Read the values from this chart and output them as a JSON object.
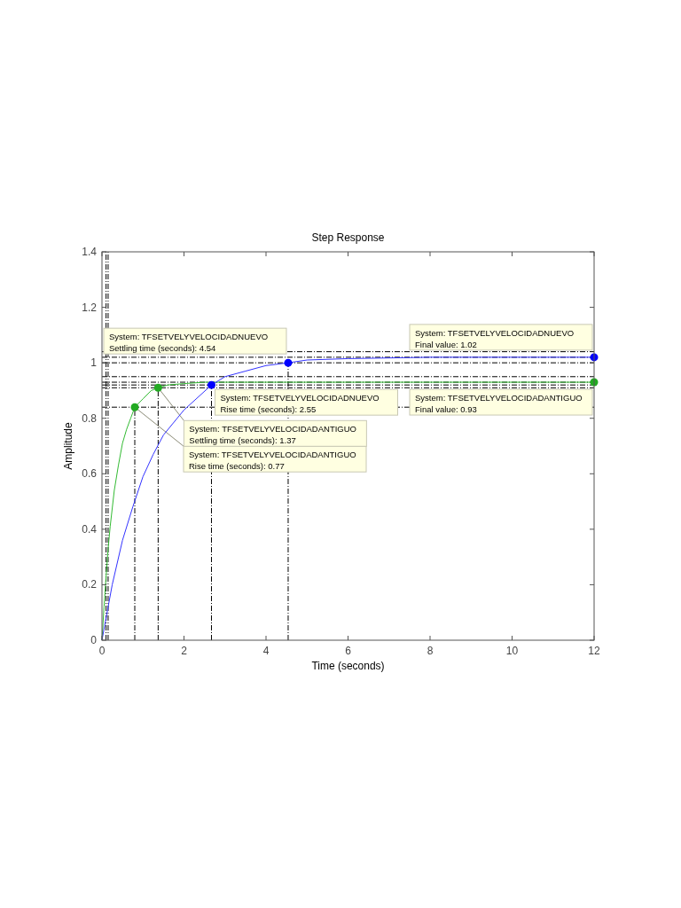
{
  "chart_data": {
    "type": "line",
    "title": "Step Response",
    "xlabel": "Time (seconds)",
    "ylabel": "Amplitude",
    "xlim": [
      0,
      12
    ],
    "xticks": [
      0,
      2,
      4,
      6,
      8,
      10,
      12
    ],
    "ylim": [
      0,
      1.4
    ],
    "yticks": [
      0,
      0.2,
      0.4,
      0.6,
      0.8,
      1,
      1.2,
      1.4
    ],
    "series": [
      {
        "type": "line",
        "color": "#33bb33",
        "x": [
          0,
          0.05,
          0.1,
          0.15,
          0.2,
          0.3,
          0.4,
          0.5,
          0.6,
          0.7,
          0.8,
          1.0,
          1.2,
          1.37,
          1.6,
          2,
          2.5,
          3,
          4,
          6,
          8,
          10,
          12
        ],
        "values": [
          0,
          0.12,
          0.23,
          0.33,
          0.41,
          0.54,
          0.63,
          0.71,
          0.76,
          0.8,
          0.84,
          0.87,
          0.9,
          0.91,
          0.92,
          0.925,
          0.93,
          0.93,
          0.93,
          0.93,
          0.93,
          0.93,
          0.93
        ]
      },
      {
        "type": "line",
        "color": "#3333ff",
        "x": [
          0,
          0.25,
          0.5,
          0.75,
          1,
          1.25,
          1.5,
          2,
          2.67,
          3,
          3.5,
          4,
          4.54,
          5,
          6,
          8,
          10,
          12
        ],
        "values": [
          0,
          0.2,
          0.36,
          0.48,
          0.59,
          0.67,
          0.74,
          0.83,
          0.92,
          0.95,
          0.97,
          0.99,
          1.0,
          1.01,
          1.015,
          1.02,
          1.02,
          1.02
        ]
      },
      {
        "type": "scatter",
        "marker": "circle",
        "color": "#22aa22",
        "x": [
          0.8,
          1.37,
          12
        ],
        "values": [
          0.84,
          0.91,
          0.93
        ]
      },
      {
        "type": "scatter",
        "marker": "circle",
        "color": "#0000ff",
        "x": [
          2.67,
          4.54,
          12
        ],
        "values": [
          0.92,
          1.0,
          1.02
        ]
      }
    ],
    "ref_lines": [
      {
        "axis": "y",
        "value": 1.04,
        "line_style": "dashed",
        "color": "#000000"
      },
      {
        "axis": "y",
        "value": 1.02,
        "line_style": "dashed",
        "color": "#000000"
      },
      {
        "axis": "y",
        "value": 1.0,
        "line_style": "dashed",
        "color": "#000000"
      },
      {
        "axis": "y",
        "value": 0.95,
        "line_style": "dashed",
        "color": "#000000"
      },
      {
        "axis": "y",
        "value": 0.93,
        "line_style": "dashed",
        "color": "#000000"
      },
      {
        "axis": "y",
        "value": 0.91,
        "line_style": "dashed",
        "color": "#000000"
      },
      {
        "axis": "y",
        "value": 0.92,
        "line_style": "dashed",
        "color": "#000000"
      },
      {
        "axis": "y",
        "value": 0.84,
        "line_style": "dashed",
        "color": "#000000"
      },
      {
        "axis": "x",
        "value": 0.1,
        "line_style": "dashed",
        "color": "#000000"
      },
      {
        "axis": "x",
        "value": 0.15,
        "line_style": "dashed",
        "color": "#000000"
      },
      {
        "axis": "x",
        "value": 0.8,
        "line_style": "dashed",
        "color": "#000000"
      },
      {
        "axis": "x",
        "value": 1.37,
        "line_style": "dashed",
        "color": "#000000"
      },
      {
        "axis": "x",
        "value": 2.67,
        "line_style": "dashed",
        "color": "#000000"
      },
      {
        "axis": "x",
        "value": 4.54,
        "line_style": "dashed",
        "color": "#000000"
      }
    ],
    "annotations": [
      {
        "text": "System: TFSETVELYVELOCIDADANTIGUO\nRise time (seconds): 0.77",
        "x": 0.8,
        "y": 0.84
      },
      {
        "text": "System: TFSETVELYVELOCIDADANTIGUO\nSettling time (seconds): 1.37",
        "x": 1.37,
        "y": 0.91
      },
      {
        "text": "System: TFSETVELYVELOCIDADNUEVO\nRise time (seconds): 2.55",
        "x": 2.67,
        "y": 0.92
      },
      {
        "text": "System: TFSETVELYVELOCIDADNUEVO\nSettling time (seconds): 4.54",
        "x": 4.54,
        "y": 1.0
      },
      {
        "text": "System: TFSETVELYVELOCIDADNUEVO\nFinal value: 1.02",
        "x": 12,
        "y": 1.02
      },
      {
        "text": "System: TFSETVELYVELOCIDADANTIGUO\nFinal value: 0.93",
        "x": 12,
        "y": 0.93
      }
    ]
  }
}
